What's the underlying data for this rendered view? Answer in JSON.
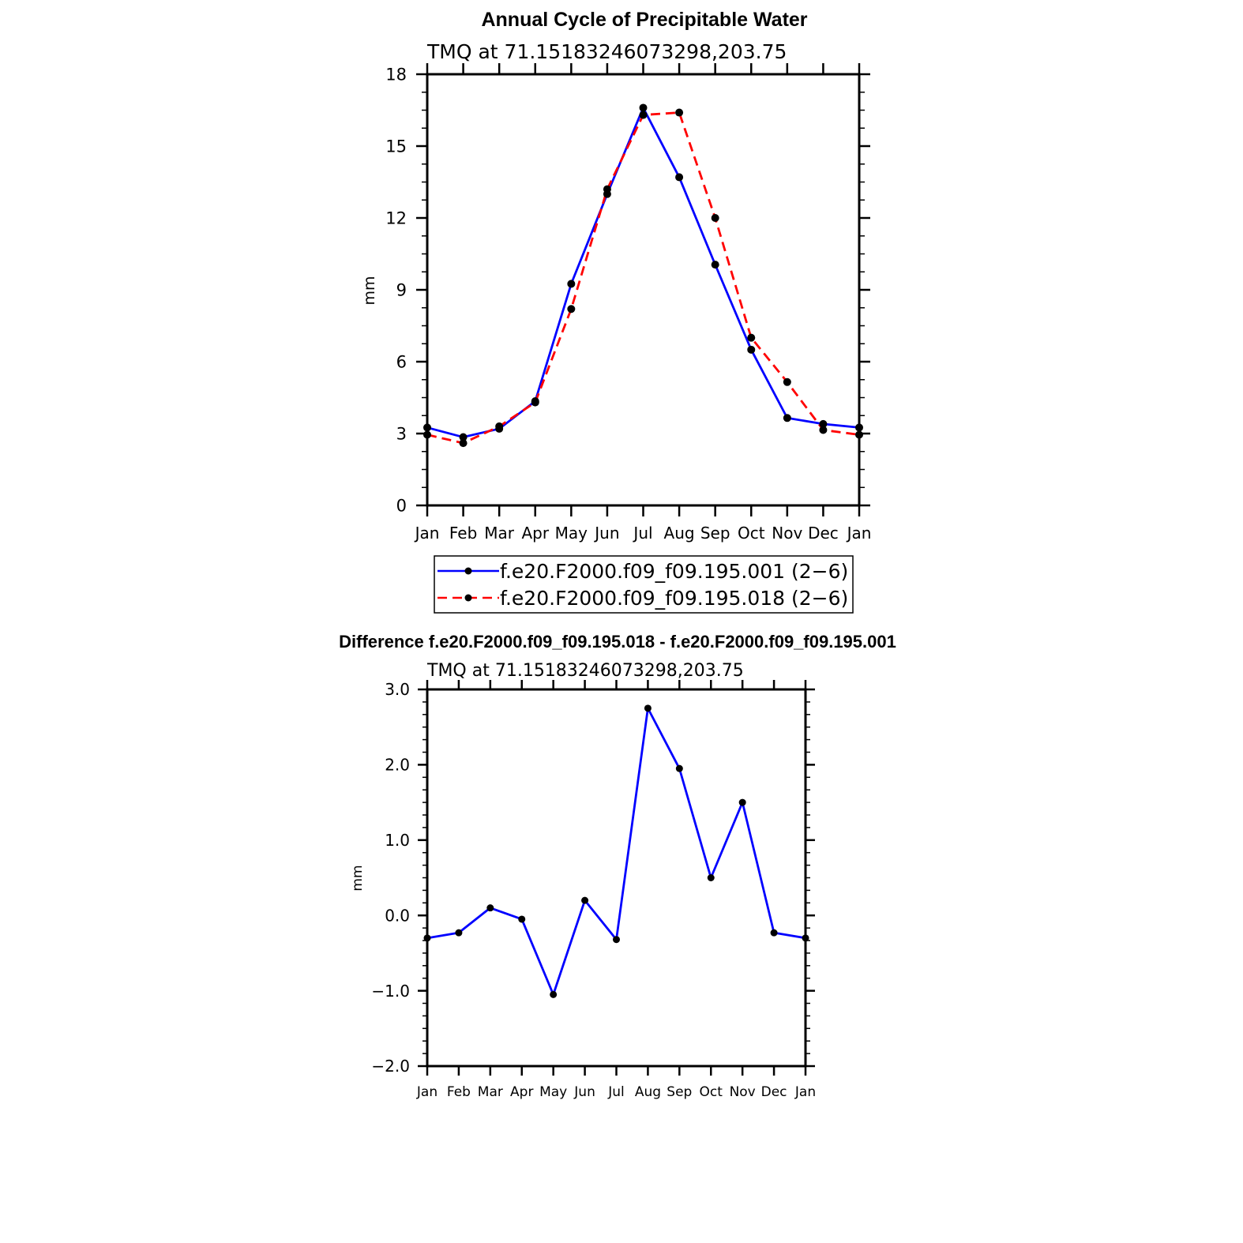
{
  "chart_data": [
    {
      "type": "line",
      "title": "Annual Cycle of Precipitable Water",
      "subtitle": "TMQ at 71.15183246073298,203.75",
      "xlabel": "",
      "ylabel": "mm",
      "categories": [
        "Jan",
        "Feb",
        "Mar",
        "Apr",
        "May",
        "Jun",
        "Jul",
        "Aug",
        "Sep",
        "Oct",
        "Nov",
        "Dec",
        "Jan"
      ],
      "ylim": [
        0,
        18
      ],
      "yticks": [
        0,
        3,
        6,
        9,
        12,
        15,
        18
      ],
      "ytick_labels": [
        "0",
        "3",
        "6",
        "9",
        "12",
        "15",
        "18"
      ],
      "series": [
        {
          "name": "f.e20.F2000.f09_f09.195.001 (2−6)",
          "color": "#0000ff",
          "dash": "solid",
          "values": [
            3.25,
            2.85,
            3.2,
            4.35,
            9.25,
            13.0,
            16.6,
            13.7,
            10.05,
            6.5,
            3.65,
            3.4,
            3.25
          ]
        },
        {
          "name": "f.e20.F2000.f09_f09.195.018 (2−6)",
          "color": "#ff0000",
          "dash": "dashed",
          "values": [
            2.95,
            2.6,
            3.3,
            4.3,
            8.2,
            13.2,
            16.3,
            16.4,
            12.0,
            7.0,
            5.15,
            3.15,
            2.95
          ]
        }
      ],
      "legend": "bottom"
    },
    {
      "type": "line",
      "title": "Difference f.e20.F2000.f09_f09.195.018 - f.e20.F2000.f09_f09.195.001",
      "subtitle": "TMQ at 71.15183246073298,203.75",
      "xlabel": "",
      "ylabel": "mm",
      "categories": [
        "Jan",
        "Feb",
        "Mar",
        "Apr",
        "May",
        "Jun",
        "Jul",
        "Aug",
        "Sep",
        "Oct",
        "Nov",
        "Dec",
        "Jan"
      ],
      "ylim": [
        -2,
        3
      ],
      "yticks": [
        -2,
        -1,
        0,
        1,
        2,
        3
      ],
      "ytick_labels": [
        "−2.0",
        "−1.0",
        "0.0",
        "1.0",
        "2.0",
        "3.0"
      ],
      "series": [
        {
          "color": "#0000ff",
          "dash": "solid",
          "values": [
            -0.3,
            -0.23,
            0.1,
            -0.05,
            -1.05,
            0.2,
            -0.32,
            2.75,
            1.95,
            0.5,
            1.5,
            -0.23,
            -0.3
          ]
        }
      ]
    }
  ]
}
